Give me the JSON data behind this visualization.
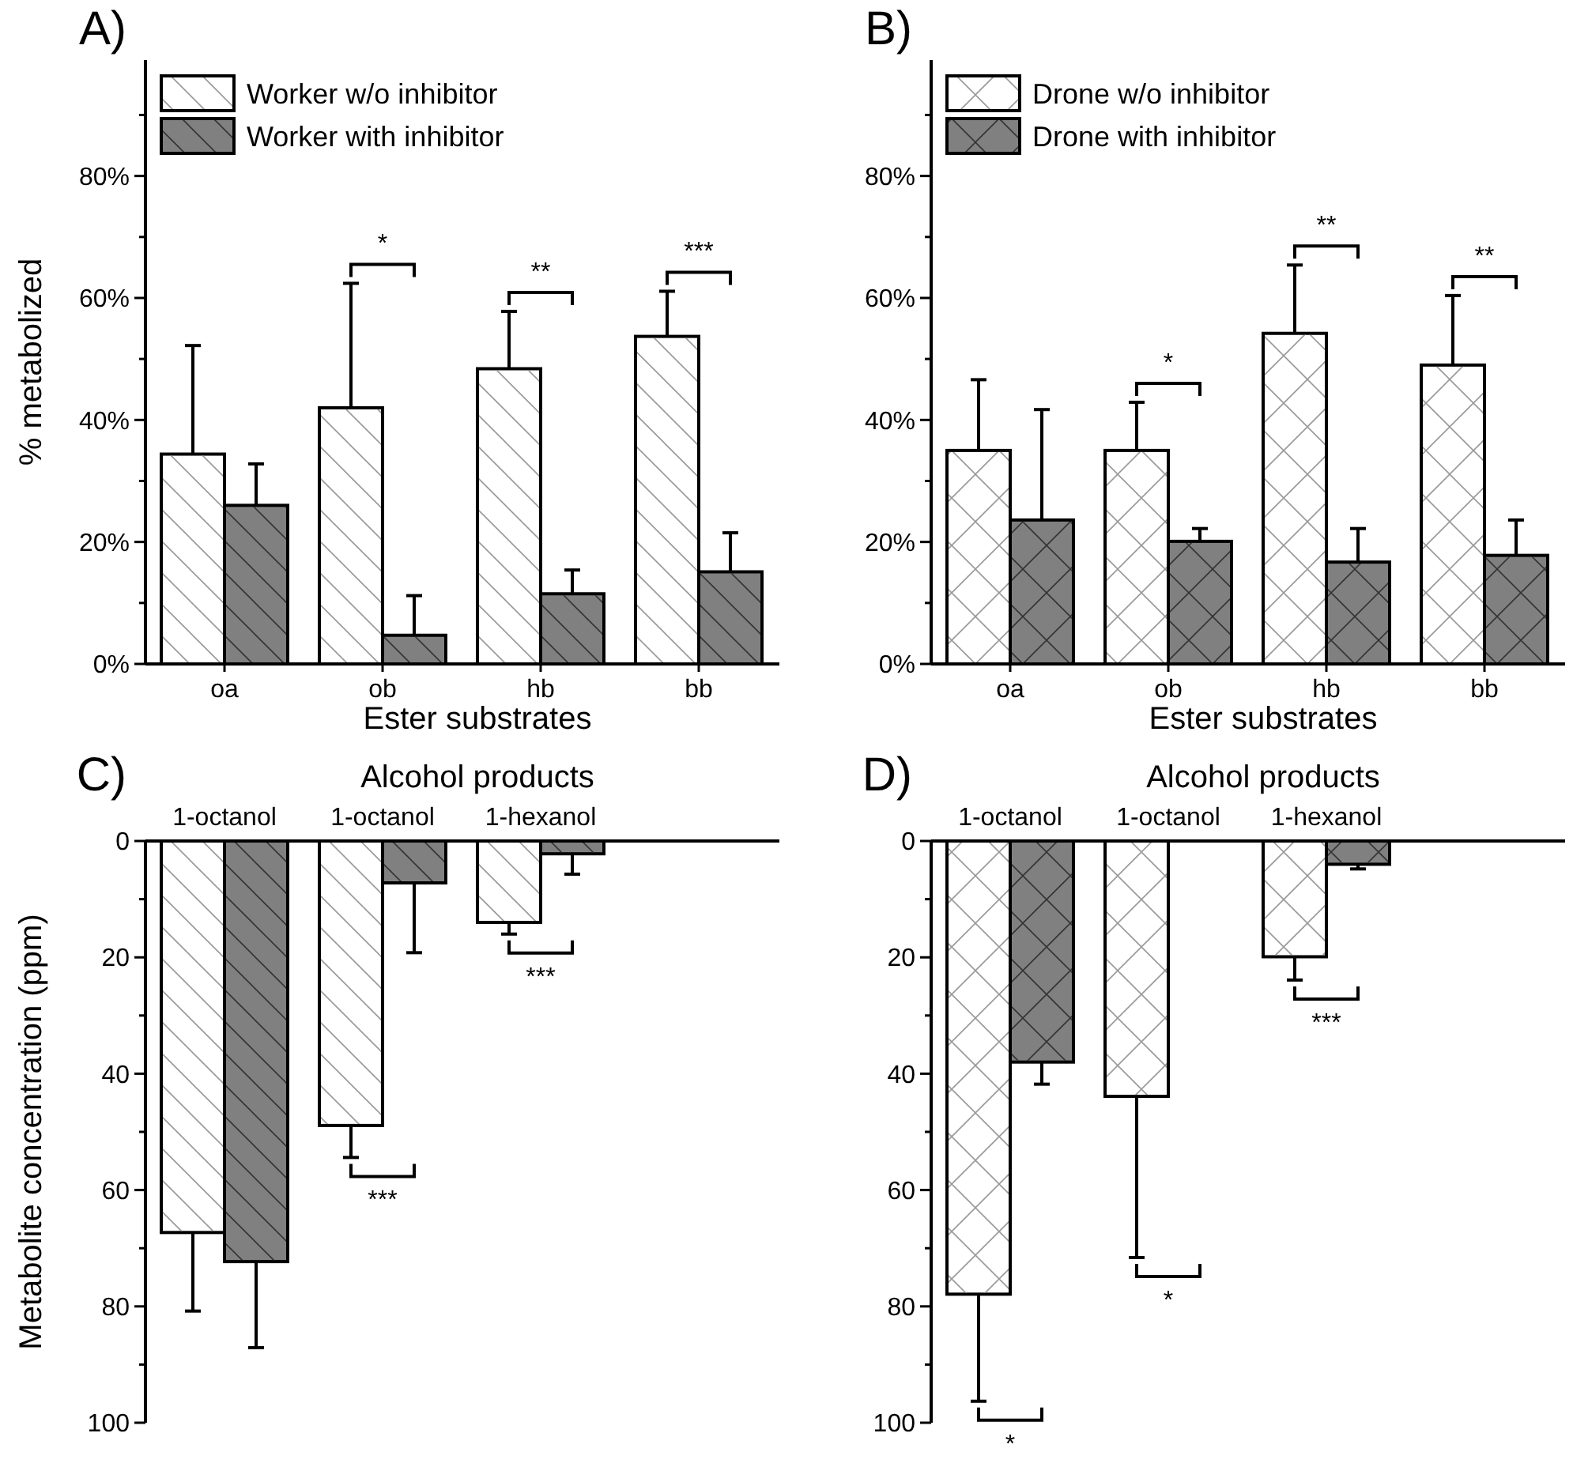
{
  "chart_data": [
    {
      "type": "bar",
      "title": "A)",
      "xlabel": "Ester substrates",
      "ylabel": "% metabolized",
      "categories": [
        "oa",
        "ob",
        "hb",
        "bb"
      ],
      "series": [
        {
          "name": "Worker w/o inhibitor",
          "color": "#ffffff",
          "values": [
            34.4,
            42.0,
            48.4,
            53.7
          ],
          "errors": [
            [
              34.4,
              52.2
            ],
            [
              42.0,
              62.4
            ],
            [
              48.4,
              57.8
            ],
            [
              53.7,
              61.1
            ]
          ]
        },
        {
          "name": "Worker with inhibitor",
          "color": "#808080",
          "values": [
            26.0,
            4.7,
            11.5,
            15.1
          ],
          "errors": [
            [
              26.0,
              32.8
            ],
            [
              4.7,
              11.2
            ],
            [
              11.5,
              15.4
            ],
            [
              15.1,
              21.5
            ]
          ]
        }
      ],
      "ylim": [
        0,
        99
      ],
      "yticks": [
        {
          "value": 0,
          "label": "0%"
        },
        {
          "value": 10,
          "label": null
        },
        {
          "value": 20,
          "label": "20%"
        },
        {
          "value": 30,
          "label": null
        },
        {
          "value": 40,
          "label": "40%"
        },
        {
          "value": 50,
          "label": null
        },
        {
          "value": 60,
          "label": "60%"
        },
        {
          "value": 70,
          "label": null
        },
        {
          "value": 80,
          "label": "80%"
        },
        {
          "value": 90,
          "label": null
        }
      ],
      "legend": "top left",
      "annotations": [
        "*",
        "**",
        "***"
      ]
    },
    {
      "type": "bar",
      "title": "B)",
      "xlabel": "Ester substrates",
      "categories": [
        "oa",
        "ob",
        "hb",
        "bb"
      ],
      "series": [
        {
          "name": "Drone w/o inhibitor",
          "color": "#ffffff",
          "values": [
            35.0,
            35.0,
            54.2,
            49.0
          ],
          "errors": [
            [
              35.0,
              46.6
            ],
            [
              35.0,
              42.9
            ],
            [
              54.2,
              65.4
            ],
            [
              49.0,
              60.4
            ]
          ]
        },
        {
          "name": "Drone with inhibitor",
          "color": "#808080",
          "values": [
            23.6,
            20.1,
            16.7,
            17.8
          ],
          "errors": [
            [
              23.6,
              41.7
            ],
            [
              20.1,
              22.2
            ],
            [
              16.7,
              22.2
            ],
            [
              17.8,
              23.6
            ]
          ]
        }
      ],
      "ylim": [
        0,
        99
      ],
      "yticks": [
        {
          "value": 0,
          "label": "0%"
        },
        {
          "value": 10,
          "label": null
        },
        {
          "value": 20,
          "label": "20%"
        },
        {
          "value": 30,
          "label": null
        },
        {
          "value": 40,
          "label": "40%"
        },
        {
          "value": 50,
          "label": null
        },
        {
          "value": 60,
          "label": "60%"
        },
        {
          "value": 70,
          "label": null
        },
        {
          "value": 80,
          "label": "80%"
        },
        {
          "value": 90,
          "label": null
        }
      ],
      "legend": "top left",
      "annotations": [
        "*",
        "**",
        "**"
      ]
    },
    {
      "type": "bar",
      "title": "C)",
      "xlabel": "Alcohol products",
      "ylabel": "Metabolite concentration (ppm)",
      "categories": [
        "1-octanol",
        "1-octanol",
        "1-hexanol"
      ],
      "series": [
        {
          "color": "#ffffff",
          "values": [
            67.3,
            48.9,
            14.0
          ],
          "errors": [
            [
              67.3,
              80.8
            ],
            [
              48.9,
              54.4
            ],
            [
              14.0,
              16.0
            ]
          ]
        },
        {
          "color": "#808080",
          "values": [
            72.3,
            7.2,
            2.2
          ],
          "errors": [
            [
              72.3,
              87.1
            ],
            [
              7.2,
              19.2
            ],
            [
              2.2,
              5.7
            ]
          ]
        }
      ],
      "ylim": [
        100,
        0
      ],
      "yticks": [
        0,
        {
          "value": 10,
          "label": null
        },
        20,
        {
          "value": 30,
          "label": null
        },
        40,
        {
          "value": 50,
          "label": null
        },
        60,
        {
          "value": 70,
          "label": null
        },
        80,
        {
          "value": 90,
          "label": null
        },
        100
      ],
      "annotations": [
        "***",
        "***"
      ]
    },
    {
      "type": "bar",
      "title": "D)",
      "xlabel": "Alcohol products",
      "categories": [
        "1-octanol",
        "1-octanol",
        "1-hexanol"
      ],
      "series": [
        {
          "color": "#ffffff",
          "values": [
            77.9,
            43.9,
            19.9
          ],
          "errors": [
            [
              77.9,
              96.3
            ],
            [
              43.9,
              71.6
            ],
            [
              19.9,
              23.9
            ]
          ]
        },
        {
          "color": "#808080",
          "values": [
            38.0,
            null,
            4.0
          ],
          "errors": [
            [
              38.0,
              41.8
            ],
            null,
            [
              4.0,
              4.8
            ]
          ]
        }
      ],
      "ylim": [
        100,
        0
      ],
      "yticks": [
        0,
        {
          "value": 10,
          "label": null
        },
        20,
        {
          "value": 30,
          "label": null
        },
        40,
        {
          "value": 50,
          "label": null
        },
        60,
        {
          "value": 70,
          "label": null
        },
        80,
        {
          "value": 90,
          "label": null
        },
        100
      ],
      "annotations": [
        "*",
        "*",
        "***"
      ]
    }
  ]
}
